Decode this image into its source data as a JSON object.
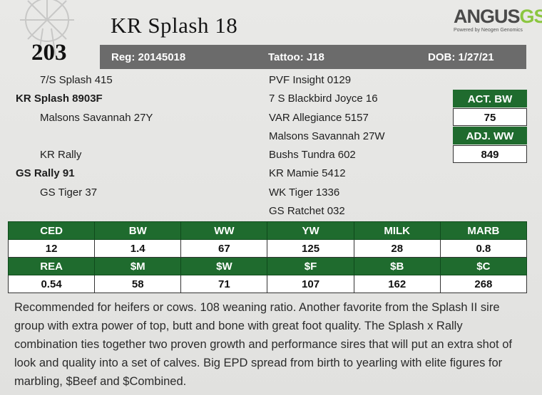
{
  "header": {
    "name": "KR Splash 18",
    "lot": "203",
    "reg": "Reg: 20145018",
    "tattoo": "Tattoo: J18",
    "dob": "DOB: 1/27/21"
  },
  "brand": {
    "word": "ANGUS",
    "suffix": "GS",
    "tagline": "Powered by Neogen Genomics"
  },
  "pedigree": {
    "left": [
      "7/S Splash 415",
      "KR Splash 8903F",
      "Malsons Savannah 27Y",
      "KR Rally",
      "GS Rally 91",
      "GS Tiger 37"
    ],
    "right": [
      "PVF Insight 0129",
      "7 S Blackbird Joyce 16",
      "VAR Allegiance 5157",
      "Malsons Savannah 27W",
      "Bushs Tundra 602",
      "KR Mamie 5412",
      "WK Tiger 1336",
      "GS Ratchet 032"
    ]
  },
  "weights": {
    "act_bw_label": "ACT. BW",
    "act_bw_value": "75",
    "adj_ww_label": "ADJ. WW",
    "adj_ww_value": "849"
  },
  "epd": {
    "row1_headers": [
      "CED",
      "BW",
      "WW",
      "YW",
      "MILK",
      "MARB"
    ],
    "row1_values": [
      "12",
      "1.4",
      "67",
      "125",
      "28",
      "0.8"
    ],
    "row2_headers": [
      "REA",
      "$M",
      "$W",
      "$F",
      "$B",
      "$C"
    ],
    "row2_values": [
      "0.54",
      "58",
      "71",
      "107",
      "162",
      "268"
    ]
  },
  "description": "Recommended for heifers or cows. 108 weaning ratio. Another favorite from the Splash II sire group with extra power of top, butt and bone with great foot quality. The Splash x Rally combination ties together two proven growth and performance sires that will put an extra shot of look and quality into a set of calves. Big EPD spread from birth to yearling with elite figures for marbling, $Beef and $Combined.",
  "colors": {
    "header_green": "#1f6b2e",
    "reg_bar": "#6b6b6b",
    "gs_green": "#8bc63f"
  }
}
